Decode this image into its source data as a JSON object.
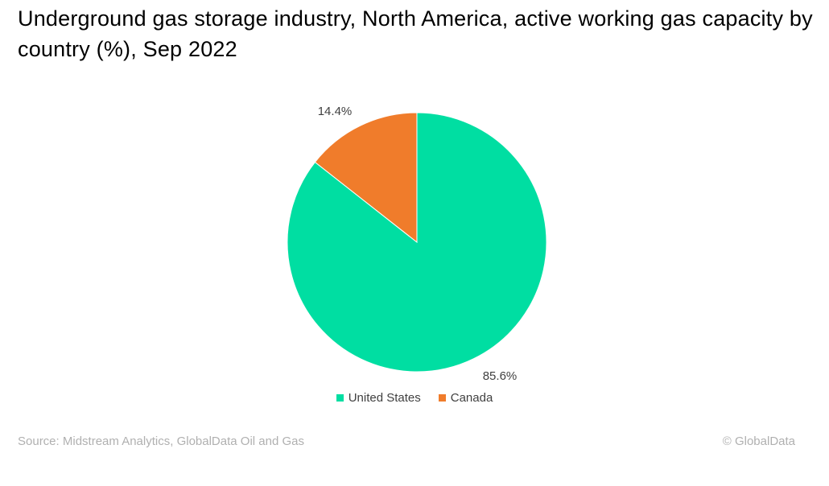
{
  "chart_data": {
    "type": "pie",
    "title": "Underground gas storage industry, North America, active working gas capacity by country (%), Sep 2022",
    "categories": [
      "United States",
      "Canada"
    ],
    "values": [
      85.6,
      14.4
    ],
    "labels": [
      "85.6%",
      "14.4%"
    ],
    "colors": [
      "#00DEA2",
      "#F07C2B"
    ],
    "legend_position": "bottom"
  },
  "footer": {
    "source": "Source: Midstream Analytics, GlobalData Oil and Gas",
    "copyright": "© GlobalData"
  }
}
